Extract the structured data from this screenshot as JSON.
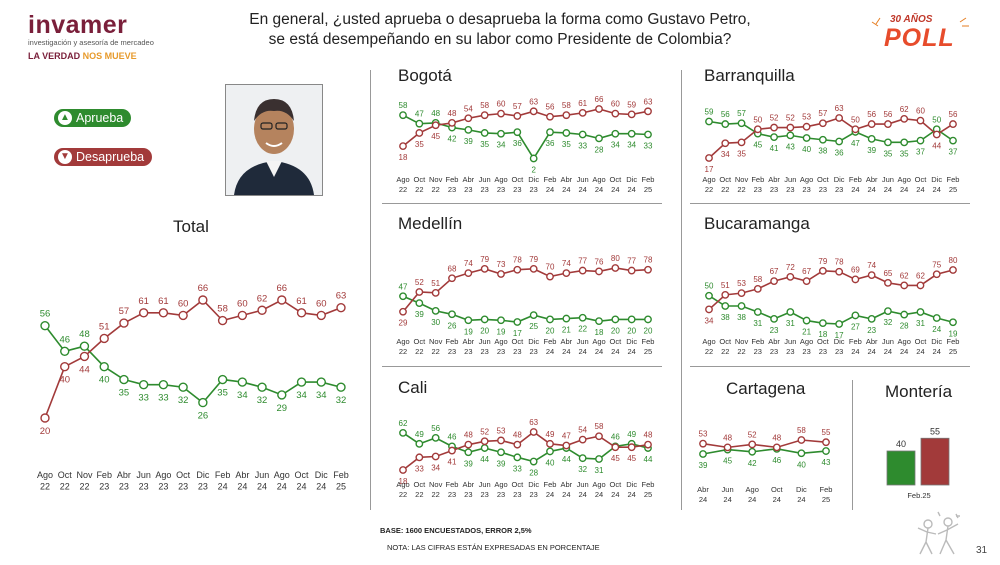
{
  "header": {
    "logo_name": "invamer",
    "logo_subtitle": "investigación y asesoría de mercadeo",
    "slogan_a": "LA VERDAD ",
    "slogan_b": "NOS MUEVE",
    "title_line1": "En general, ¿usted aprueba o desaprueba la forma como Gustavo Petro,",
    "title_line2": "se está desempeñando en su labor como Presidente de Colombia?",
    "badge_years": "30 AÑOS",
    "badge_poll": "POLL"
  },
  "legend": {
    "aprueba": "Aprueba",
    "desaprueba": "Desaprueba"
  },
  "colors": {
    "aprueba": "#2e8b2e",
    "desaprueba": "#a23a3a"
  },
  "footer": {
    "base": "BASE: 1600 ENCUESTADOS, ERROR 2,5%",
    "note": "NOTA: LAS CIFRAS ESTÁN EXPRESADAS EN PORCENTAJE",
    "page": "31"
  },
  "chart_data": [
    {
      "id": "total",
      "type": "line",
      "title": "Total",
      "categories": [
        [
          "Ago",
          "22"
        ],
        [
          "Oct",
          "22"
        ],
        [
          "Nov",
          "22"
        ],
        [
          "Feb",
          "23"
        ],
        [
          "Abr",
          "23"
        ],
        [
          "Jun",
          "23"
        ],
        [
          "Ago",
          "23"
        ],
        [
          "Oct",
          "23"
        ],
        [
          "Dic",
          "23"
        ],
        [
          "Feb",
          "24"
        ],
        [
          "Abr",
          "24"
        ],
        [
          "Jun",
          "24"
        ],
        [
          "Ago",
          "24"
        ],
        [
          "Oct",
          "24"
        ],
        [
          "Dic",
          "24"
        ],
        [
          "Feb",
          "25"
        ]
      ],
      "series": [
        {
          "name": "Aprueba",
          "values": [
            56,
            46,
            48,
            40,
            35,
            33,
            33,
            32,
            26,
            35,
            34,
            32,
            29,
            34,
            34,
            32
          ]
        },
        {
          "name": "Desaprueba",
          "values": [
            20,
            40,
            44,
            51,
            57,
            61,
            61,
            60,
            66,
            58,
            60,
            62,
            66,
            61,
            60,
            63
          ]
        }
      ]
    },
    {
      "id": "bogota",
      "type": "line",
      "title": "Bogotá",
      "categories": [
        [
          "Ago",
          "22"
        ],
        [
          "Oct",
          "22"
        ],
        [
          "Nov",
          "22"
        ],
        [
          "Feb",
          "23"
        ],
        [
          "Abr",
          "23"
        ],
        [
          "Jun",
          "23"
        ],
        [
          "Ago",
          "23"
        ],
        [
          "Oct",
          "23"
        ],
        [
          "Dic",
          "23"
        ],
        [
          "Feb",
          "24"
        ],
        [
          "Abr",
          "24"
        ],
        [
          "Jun",
          "24"
        ],
        [
          "Ago",
          "24"
        ],
        [
          "Oct",
          "24"
        ],
        [
          "Dic",
          "24"
        ],
        [
          "Feb",
          "25"
        ]
      ],
      "series": [
        {
          "name": "Aprueba",
          "values": [
            58,
            47,
            48,
            42,
            39,
            35,
            34,
            36,
            2,
            36,
            35,
            33,
            28,
            34,
            34,
            33
          ]
        },
        {
          "name": "Desaprueba",
          "values": [
            18,
            35,
            45,
            48,
            54,
            58,
            60,
            57,
            63,
            56,
            58,
            61,
            66,
            60,
            59,
            63
          ]
        }
      ]
    },
    {
      "id": "barranquilla",
      "type": "line",
      "title": "Barranquilla",
      "categories": [
        [
          "Ago",
          "22"
        ],
        [
          "Oct",
          "22"
        ],
        [
          "Nov",
          "22"
        ],
        [
          "Feb",
          "23"
        ],
        [
          "Abr",
          "23"
        ],
        [
          "Jun",
          "23"
        ],
        [
          "Ago",
          "23"
        ],
        [
          "Oct",
          "23"
        ],
        [
          "Dic",
          "23"
        ],
        [
          "Feb",
          "24"
        ],
        [
          "Abr",
          "24"
        ],
        [
          "Jun",
          "24"
        ],
        [
          "Ago",
          "24"
        ],
        [
          "Oct",
          "24"
        ],
        [
          "Dic",
          "24"
        ],
        [
          "Feb",
          "25"
        ]
      ],
      "series": [
        {
          "name": "Aprueba",
          "values": [
            59,
            56,
            57,
            45,
            41,
            43,
            40,
            38,
            36,
            47,
            39,
            35,
            35,
            37,
            50,
            37
          ]
        },
        {
          "name": "Desaprueba",
          "values": [
            17,
            34,
            35,
            50,
            52,
            52,
            53,
            57,
            63,
            50,
            56,
            56,
            62,
            60,
            44,
            56
          ]
        }
      ]
    },
    {
      "id": "medellin",
      "type": "line",
      "title": "Medellín",
      "categories": [
        [
          "Ago",
          "22"
        ],
        [
          "Oct",
          "22"
        ],
        [
          "Nov",
          "22"
        ],
        [
          "Feb",
          "23"
        ],
        [
          "Abr",
          "23"
        ],
        [
          "Jun",
          "23"
        ],
        [
          "Ago",
          "23"
        ],
        [
          "Oct",
          "23"
        ],
        [
          "Dic",
          "23"
        ],
        [
          "Feb",
          "24"
        ],
        [
          "Abr",
          "24"
        ],
        [
          "Jun",
          "24"
        ],
        [
          "Ago",
          "24"
        ],
        [
          "Oct",
          "24"
        ],
        [
          "Dic",
          "24"
        ],
        [
          "Feb",
          "25"
        ]
      ],
      "series": [
        {
          "name": "Aprueba",
          "values": [
            47,
            39,
            30,
            26,
            19,
            20,
            19,
            17,
            25,
            20,
            21,
            22,
            18,
            20,
            20,
            20
          ]
        },
        {
          "name": "Desaprueba",
          "values": [
            29,
            52,
            51,
            68,
            74,
            79,
            73,
            78,
            79,
            70,
            74,
            77,
            76,
            80,
            77,
            78
          ]
        }
      ]
    },
    {
      "id": "bucaramanga",
      "type": "line",
      "title": "Bucaramanga",
      "categories": [
        [
          "Ago",
          "22"
        ],
        [
          "Oct",
          "22"
        ],
        [
          "Nov",
          "22"
        ],
        [
          "Feb",
          "23"
        ],
        [
          "Abr",
          "23"
        ],
        [
          "Jun",
          "23"
        ],
        [
          "Ago",
          "23"
        ],
        [
          "Oct",
          "23"
        ],
        [
          "Dic",
          "23"
        ],
        [
          "Feb",
          "24"
        ],
        [
          "Abr",
          "24"
        ],
        [
          "Jun",
          "24"
        ],
        [
          "Ago",
          "24"
        ],
        [
          "Oct",
          "24"
        ],
        [
          "Dic",
          "24"
        ],
        [
          "Feb",
          "25"
        ]
      ],
      "series": [
        {
          "name": "Aprueba",
          "values": [
            50,
            38,
            38,
            31,
            23,
            31,
            21,
            18,
            17,
            27,
            23,
            32,
            28,
            31,
            24,
            19
          ]
        },
        {
          "name": "Desaprueba",
          "values": [
            34,
            51,
            53,
            58,
            67,
            72,
            67,
            79,
            78,
            69,
            74,
            65,
            62,
            62,
            75,
            80
          ]
        }
      ]
    },
    {
      "id": "cali",
      "type": "line",
      "title": "Cali",
      "categories": [
        [
          "Ago",
          "22"
        ],
        [
          "Oct",
          "22"
        ],
        [
          "Nov",
          "22"
        ],
        [
          "Feb",
          "23"
        ],
        [
          "Abr",
          "23"
        ],
        [
          "Jun",
          "23"
        ],
        [
          "Ago",
          "23"
        ],
        [
          "Oct",
          "23"
        ],
        [
          "Dic",
          "23"
        ],
        [
          "Feb",
          "24"
        ],
        [
          "Abr",
          "24"
        ],
        [
          "Jun",
          "24"
        ],
        [
          "Ago",
          "24"
        ],
        [
          "Oct",
          "24"
        ],
        [
          "Dic",
          "24"
        ],
        [
          "Feb",
          "25"
        ]
      ],
      "series": [
        {
          "name": "Aprueba",
          "values": [
            62,
            49,
            56,
            46,
            39,
            44,
            39,
            33,
            28,
            40,
            44,
            32,
            31,
            46,
            49,
            44
          ]
        },
        {
          "name": "Desaprueba",
          "values": [
            18,
            33,
            34,
            41,
            48,
            52,
            53,
            48,
            63,
            49,
            47,
            54,
            58,
            45,
            45,
            48
          ]
        }
      ]
    },
    {
      "id": "cartagena",
      "type": "line",
      "title": "Cartagena",
      "categories": [
        [
          "Abr",
          "24"
        ],
        [
          "Jun",
          "24"
        ],
        [
          "Ago",
          "24"
        ],
        [
          "Oct",
          "24"
        ],
        [
          "Dic",
          "24"
        ],
        [
          "Feb",
          "25"
        ]
      ],
      "series": [
        {
          "name": "Aprueba",
          "values": [
            39,
            45,
            42,
            46,
            40,
            43
          ]
        },
        {
          "name": "Desaprueba",
          "values": [
            53,
            48,
            52,
            48,
            58,
            55
          ]
        }
      ]
    },
    {
      "id": "monteria",
      "type": "bar",
      "title": "Montería",
      "categories": [
        "Feb.25"
      ],
      "series": [
        {
          "name": "Aprueba",
          "values": [
            40
          ]
        },
        {
          "name": "Desaprueba",
          "values": [
            55
          ]
        }
      ]
    }
  ]
}
